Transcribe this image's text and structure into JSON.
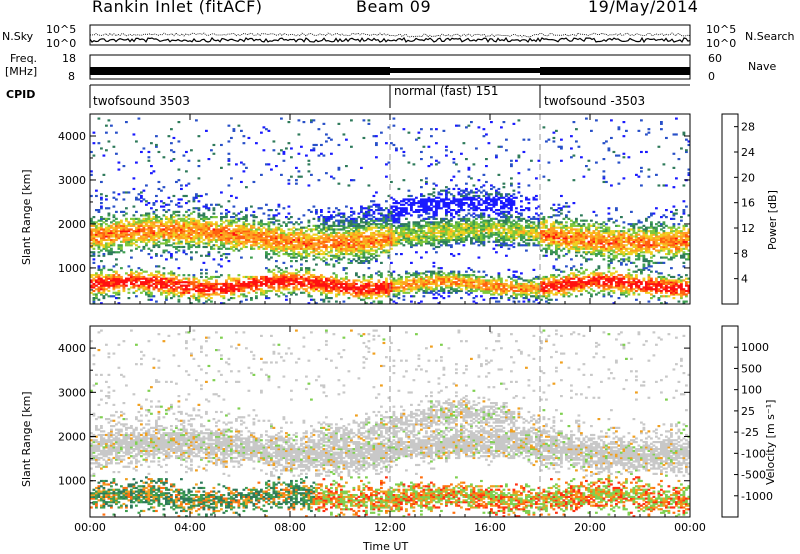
{
  "header": {
    "station": "Rankin Inlet (fitACF)",
    "beam": "Beam 09",
    "date": "19/May/2014"
  },
  "top_panels": {
    "nsky_label": "N.Sky",
    "nsearch_label": "N.Search",
    "freq_label_1": "Freq.",
    "freq_label_2": "[MHz]",
    "nave_label": "Nave",
    "cpid_label": "CPID",
    "nsky_ticks": [
      "10^5",
      "10^0"
    ],
    "nsearch_ticks": [
      "10^5",
      "10^0"
    ],
    "freq_ticks": [
      "18",
      "8"
    ],
    "nave_ticks": [
      "60",
      "0"
    ],
    "cpid_segments": [
      {
        "label": "twofsound 3503",
        "start_hour": 0
      },
      {
        "label": "normal (fast) 151",
        "start_hour": 12
      },
      {
        "label": "twofsound -3503",
        "start_hour": 18
      }
    ]
  },
  "chart_data": [
    {
      "type": "heatmap",
      "title": "",
      "xlabel": "Time UT",
      "ylabel": "Slant Range [km]",
      "x_ticks": [
        "00:00",
        "04:00",
        "08:00",
        "12:00",
        "16:00",
        "20:00",
        "00:00"
      ],
      "xlim_hours": [
        0,
        24
      ],
      "y_ticks": [
        "1000",
        "2000",
        "3000",
        "4000"
      ],
      "ylim": [
        180,
        4500
      ],
      "colorbar": {
        "label": "Power [dB]",
        "ticks": [
          "4",
          "8",
          "12",
          "16",
          "20",
          "24",
          "28"
        ],
        "range": [
          0,
          30
        ],
        "colors": [
          "#1a1aff",
          "#2850c8",
          "#2e7a5a",
          "#3e9e50",
          "#7fc83a",
          "#f0d020",
          "#ffa020",
          "#ff6010",
          "#ff1010"
        ]
      }
    },
    {
      "type": "heatmap",
      "title": "",
      "xlabel": "Time UT",
      "ylabel": "Slant Range [km]",
      "x_ticks": [
        "00:00",
        "04:00",
        "08:00",
        "12:00",
        "16:00",
        "20:00",
        "00:00"
      ],
      "xlim_hours": [
        0,
        24
      ],
      "y_ticks": [
        "1000",
        "2000",
        "3000",
        "4000"
      ],
      "ylim": [
        180,
        4500
      ],
      "colorbar": {
        "label": "Velocity [m s⁻¹]",
        "ticks": [
          "1000",
          "500",
          "100",
          "25",
          "-25",
          "-100",
          "-500",
          "-1000"
        ],
        "colors": [
          "#2030c0",
          "#2e7a5a",
          "#3e9e50",
          "#7fd050",
          "#c8c8c8",
          "#f0a020",
          "#ff7010",
          "#ff3010",
          "#ff0000"
        ]
      }
    }
  ]
}
